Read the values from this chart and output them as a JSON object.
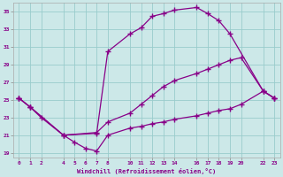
{
  "xlabel": "Windchill (Refroidissement éolien,°C)",
  "bg_color": "#cce8e8",
  "line_color": "#880088",
  "grid_color": "#99cccc",
  "xlim": [
    -0.5,
    23.5
  ],
  "ylim": [
    18.5,
    36.0
  ],
  "xticks": [
    0,
    1,
    2,
    4,
    5,
    6,
    7,
    8,
    10,
    11,
    12,
    13,
    14,
    16,
    17,
    18,
    19,
    20,
    22,
    23
  ],
  "yticks": [
    19,
    21,
    23,
    25,
    27,
    29,
    31,
    33,
    35
  ],
  "line1_x": [
    0,
    1,
    4,
    7,
    8,
    10,
    11,
    12,
    13,
    14,
    16,
    17,
    18,
    19,
    22,
    23
  ],
  "line1_y": [
    25.2,
    24.2,
    21.0,
    21.2,
    30.5,
    32.5,
    33.2,
    34.5,
    34.8,
    35.2,
    35.5,
    34.8,
    34.0,
    32.5,
    26.0,
    25.2
  ],
  "line2_x": [
    0,
    1,
    2,
    4,
    7,
    8,
    10,
    11,
    12,
    13,
    14,
    16,
    17,
    18,
    19,
    20,
    22,
    23
  ],
  "line2_y": [
    25.2,
    24.2,
    23.0,
    21.0,
    21.3,
    22.5,
    23.5,
    24.5,
    25.5,
    26.5,
    27.2,
    28.0,
    28.5,
    29.0,
    29.5,
    29.8,
    26.0,
    25.2
  ],
  "line3_x": [
    0,
    1,
    4,
    5,
    6,
    7,
    8,
    10,
    11,
    12,
    13,
    14,
    16,
    17,
    18,
    19,
    20,
    22,
    23
  ],
  "line3_y": [
    25.2,
    24.2,
    21.0,
    20.2,
    19.5,
    19.2,
    21.0,
    21.8,
    22.0,
    22.3,
    22.5,
    22.8,
    23.2,
    23.5,
    23.8,
    24.0,
    24.5,
    26.0,
    25.2
  ]
}
